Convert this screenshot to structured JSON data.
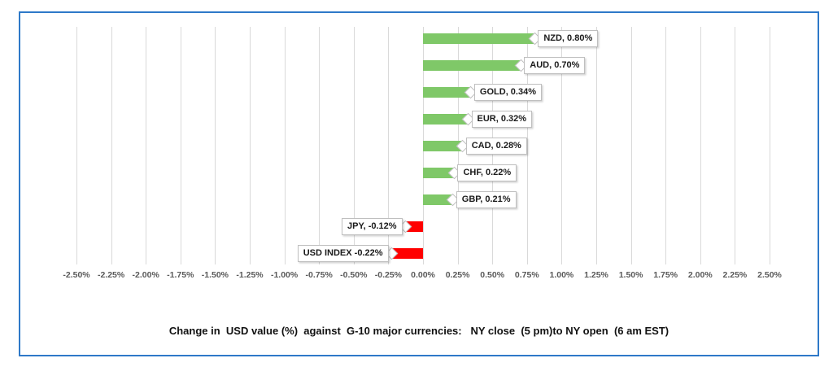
{
  "chart_data": {
    "type": "bar",
    "orientation": "horizontal",
    "title": "Change in  USD value (%)  against  G-10 major currencies:   NY close  (5 pm)to NY open  (6 am EST)",
    "categories": [
      "NZD",
      "AUD",
      "GOLD",
      "EUR",
      "CAD",
      "CHF",
      "GBP",
      "JPY",
      "USD INDEX"
    ],
    "values": [
      0.8,
      0.7,
      0.34,
      0.32,
      0.28,
      0.22,
      0.21,
      -0.12,
      -0.22
    ],
    "data_labels": [
      "NZD, 0.80%",
      "AUD, 0.70%",
      "GOLD, 0.34%",
      "EUR, 0.32%",
      "CAD, 0.28%",
      "CHF, 0.22%",
      "GBP, 0.21%",
      "JPY, -0.12%",
      "USD INDEX -0.22%"
    ],
    "x_axis": {
      "min": -2.5,
      "max": 2.5,
      "step": 0.25,
      "tick_labels": [
        "-2.50%",
        "-2.25%",
        "-2.00%",
        "-1.75%",
        "-1.50%",
        "-1.25%",
        "-1.00%",
        "-0.75%",
        "-0.50%",
        "-0.25%",
        "0.00%",
        "0.25%",
        "0.50%",
        "0.75%",
        "1.00%",
        "1.25%",
        "1.50%",
        "1.75%",
        "2.00%",
        "2.25%",
        "2.50%"
      ]
    },
    "grid": true,
    "legend": "none",
    "colors": {
      "positive_bar": "#7FC868",
      "negative_bar": "#FF0000",
      "gridline": "#D9D9D9",
      "axis_text": "#595959",
      "data_label_text": "#1A1A1A",
      "data_label_border": "#BFBFBF",
      "data_label_bg": "#FFFFFF",
      "frame_border": "#2E79C8"
    }
  }
}
